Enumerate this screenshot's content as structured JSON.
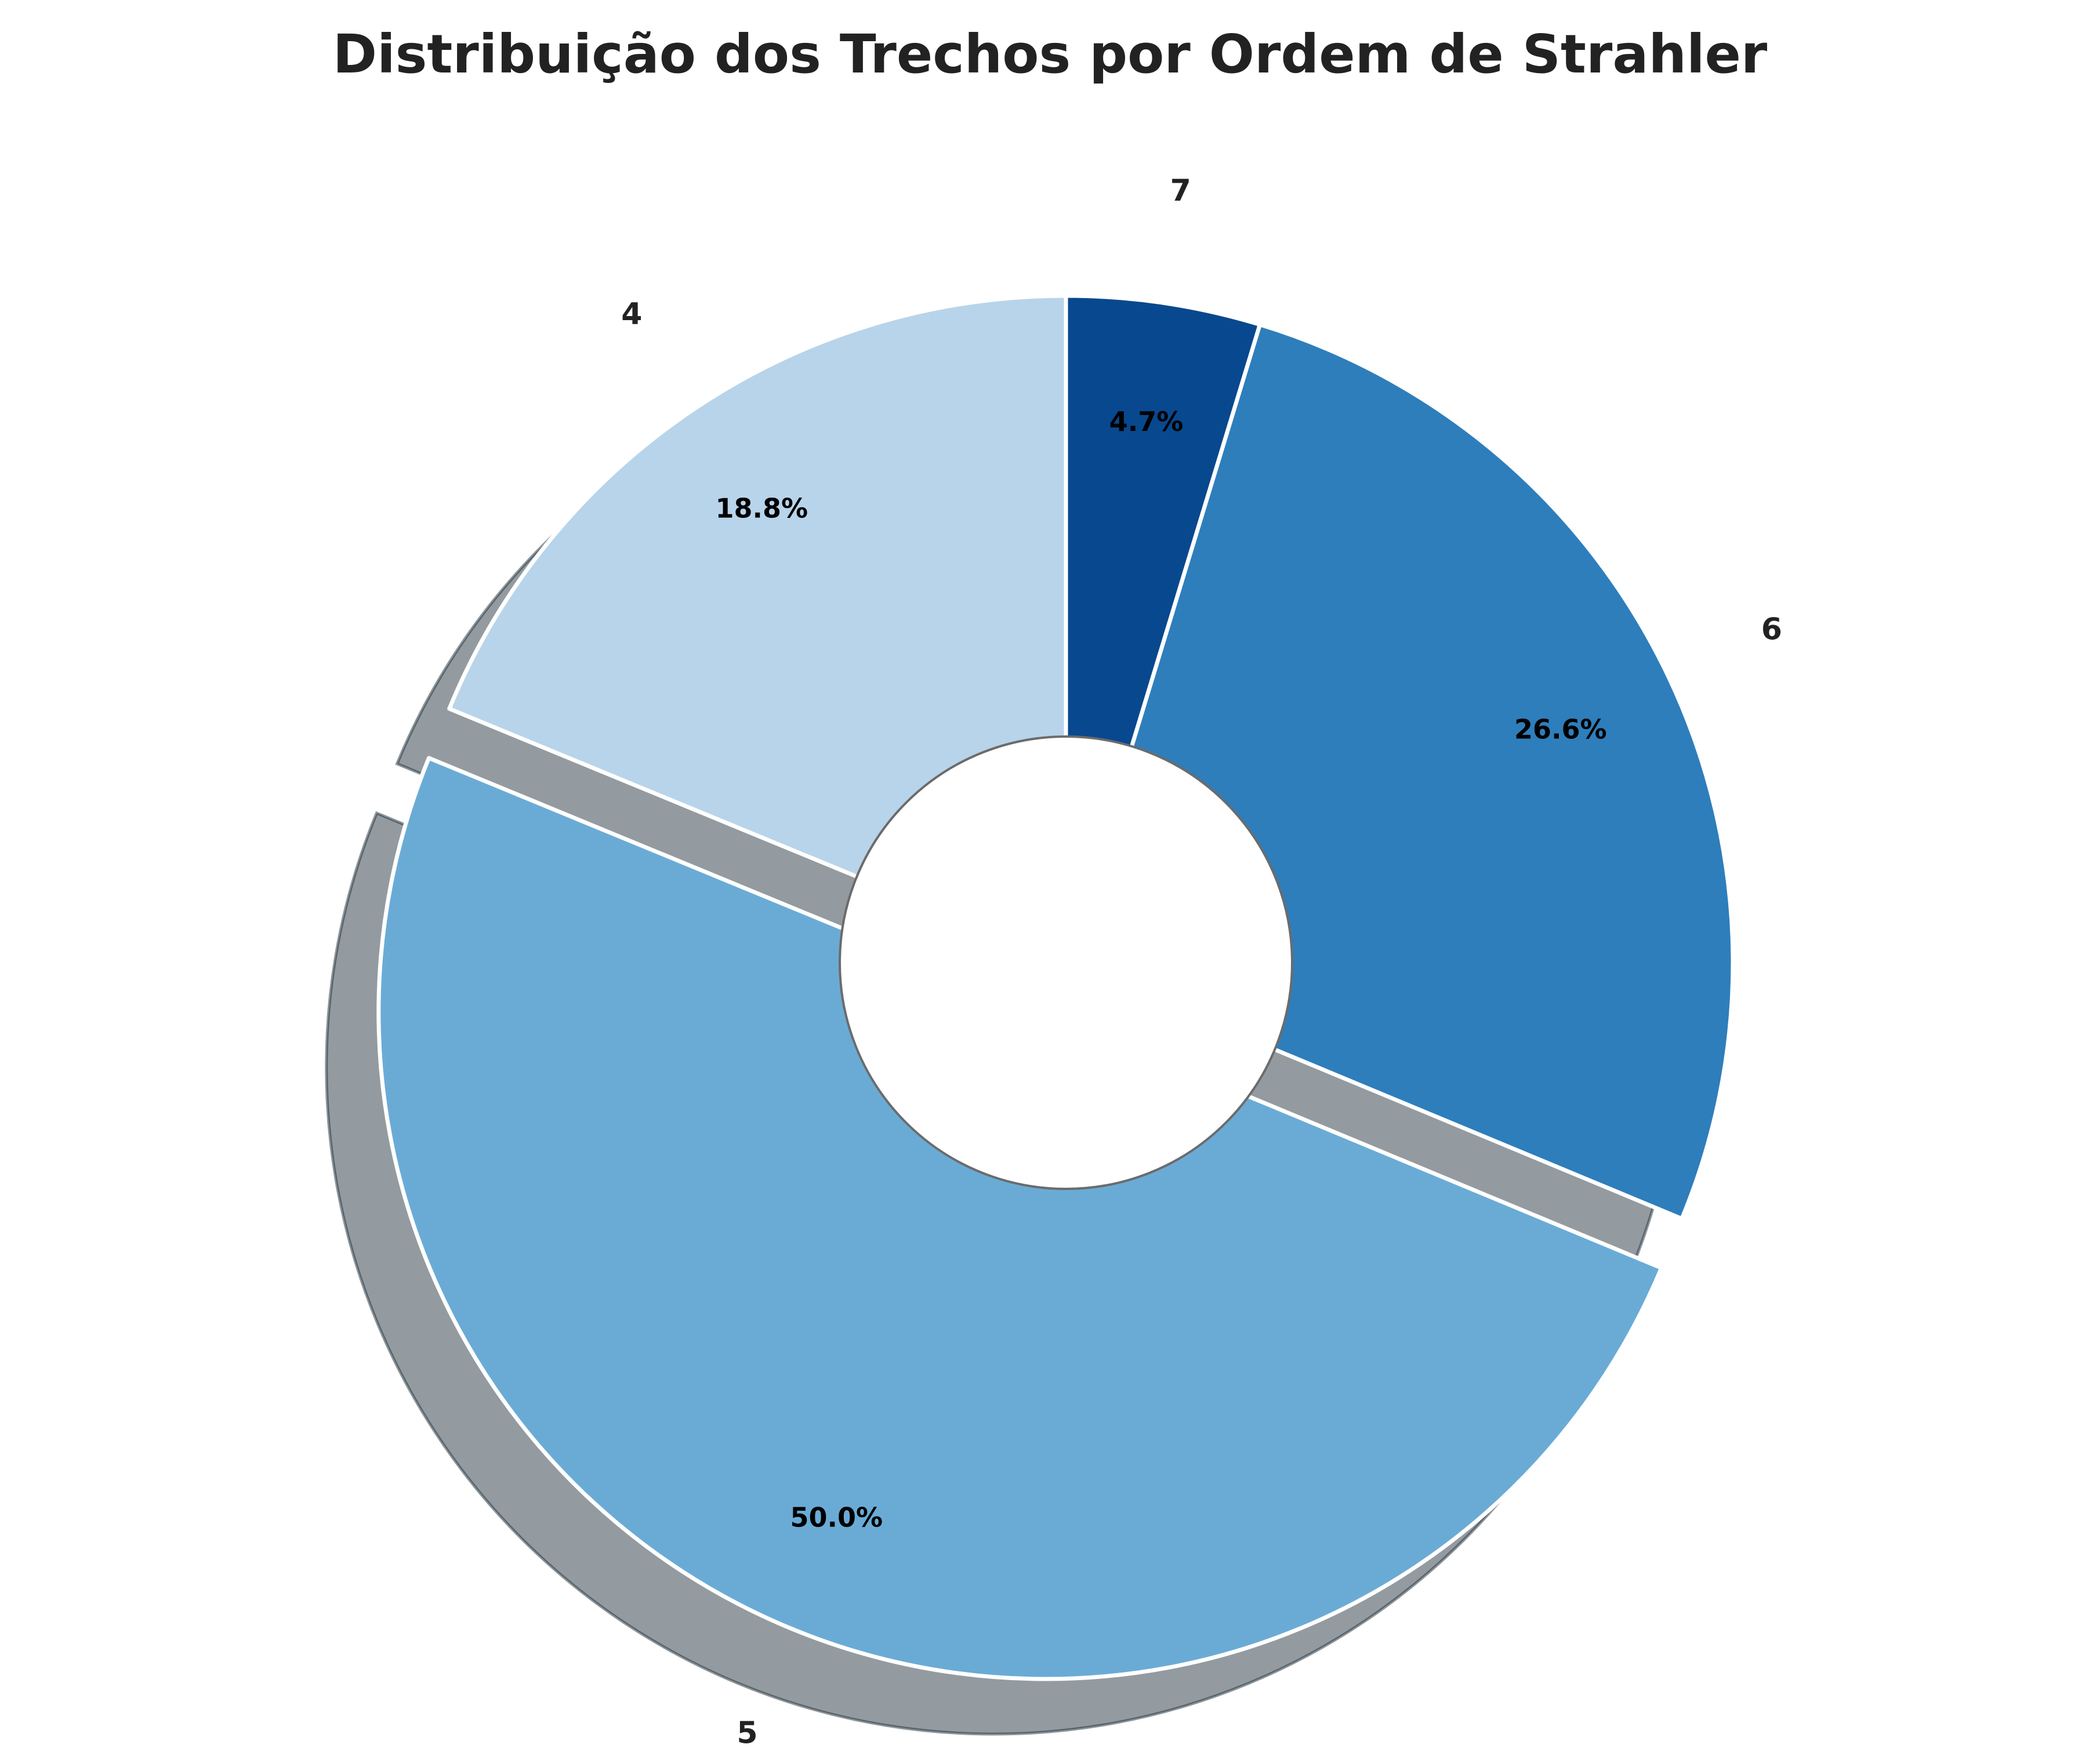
{
  "chart_data": {
    "type": "pie",
    "title": "Distribuição dos Trechos por Ordem de Strahler",
    "categories": [
      "4",
      "5",
      "6",
      "7"
    ],
    "values": [
      18.8,
      50.0,
      26.6,
      4.7
    ],
    "value_labels": [
      "18.8%",
      "50.0%",
      "26.6%",
      "4.7%"
    ],
    "colors": [
      "#b8d4ea",
      "#6aabd6",
      "#2e7ebc",
      "#08488e"
    ],
    "donut": true,
    "shadow": true,
    "exploded": [
      "5"
    ],
    "start_angle_deg": 90,
    "direction": "counterclockwise",
    "legend": "none"
  }
}
